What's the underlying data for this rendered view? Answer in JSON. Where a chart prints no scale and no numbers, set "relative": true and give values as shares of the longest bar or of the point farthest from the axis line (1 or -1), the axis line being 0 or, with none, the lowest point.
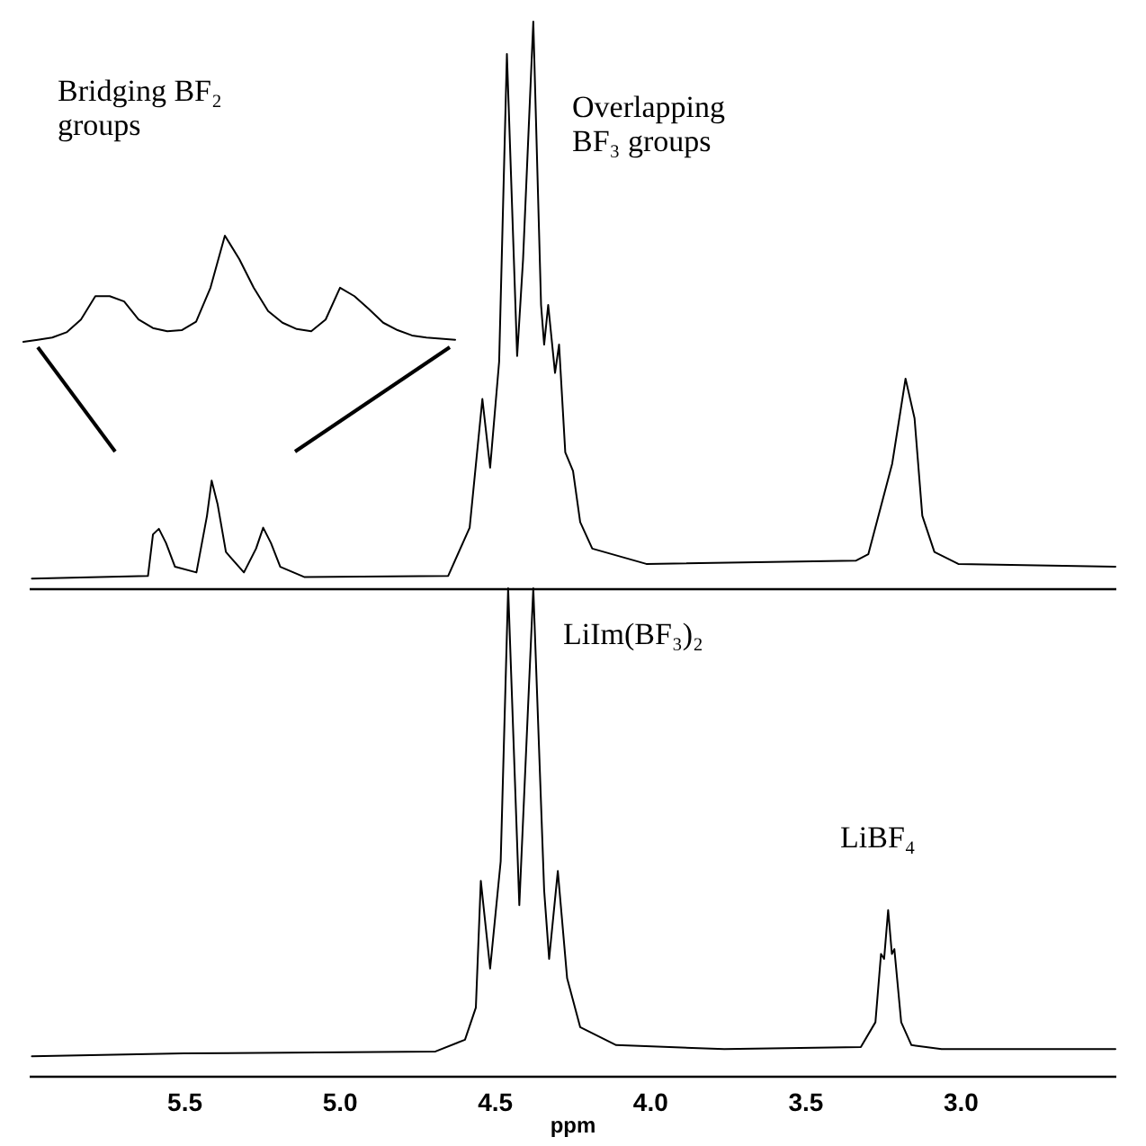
{
  "chart_data": [
    {
      "type": "line",
      "relative": true,
      "xlim": [
        6.0,
        2.5
      ],
      "tick_labels": false,
      "x": [
        5.99,
        5.616,
        5.6,
        5.581,
        5.558,
        5.529,
        5.46,
        5.426,
        5.411,
        5.392,
        5.365,
        5.307,
        5.268,
        5.245,
        5.22,
        5.19,
        5.113,
        4.649,
        4.58,
        4.539,
        4.514,
        4.485,
        4.46,
        4.427,
        4.408,
        4.375,
        4.35,
        4.34,
        4.327,
        4.305,
        4.292,
        4.272,
        4.247,
        4.224,
        4.185,
        4.011,
        3.335,
        3.296,
        3.219,
        3.196,
        3.176,
        3.147,
        3.122,
        3.083,
        3.006,
        2.5
      ],
      "series": [
        {
          "color": "#000000",
          "values": [
            0.017,
            0.022,
            0.095,
            0.105,
            0.08,
            0.038,
            0.028,
            0.128,
            0.19,
            0.149,
            0.064,
            0.028,
            0.07,
            0.107,
            0.08,
            0.038,
            0.02,
            0.022,
            0.107,
            0.334,
            0.213,
            0.4,
            0.943,
            0.41,
            0.58,
            1.0,
            0.5,
            0.43,
            0.5,
            0.38,
            0.43,
            0.24,
            0.207,
            0.117,
            0.07,
            0.043,
            0.049,
            0.06,
            0.22,
            0.3,
            0.37,
            0.3,
            0.128,
            0.064,
            0.043,
            0.038
          ]
        }
      ],
      "annotations": [
        "Bridging BF₂\ngroups",
        "Overlapping\nBF₃ groups"
      ]
    },
    {
      "type": "line",
      "relative": true,
      "tick_labels": false,
      "categories": [
        null,
        null,
        null,
        null,
        null,
        null,
        null,
        null,
        null,
        null,
        null,
        null,
        null,
        null,
        null,
        null,
        null,
        null,
        null,
        null,
        null,
        null,
        null,
        null,
        null,
        null,
        null,
        null,
        null,
        null,
        null
      ],
      "series": [
        {
          "color": "#000000",
          "values": [
            0,
            0.02,
            0.04,
            0.09,
            0.21,
            0.43,
            0.43,
            0.38,
            0.21,
            0.13,
            0.1,
            0.11,
            0.19,
            0.51,
            1.0,
            0.78,
            0.51,
            0.29,
            0.18,
            0.12,
            0.1,
            0.21,
            0.51,
            0.43,
            0.31,
            0.18,
            0.11,
            0.06,
            0.04,
            0.03,
            0.02
          ]
        }
      ]
    },
    {
      "type": "line",
      "relative": true,
      "xlim": [
        6.0,
        2.5
      ],
      "xlabel": "ppm",
      "xticks": [
        5.5,
        {
          "value": 5,
          "label": "5.0"
        },
        4.5,
        {
          "value": 4,
          "label": "4.0"
        },
        3.5,
        {
          "value": 3,
          "label": "3.0"
        }
      ],
      "x": [
        5.99,
        5.5,
        4.69,
        4.595,
        4.56,
        4.544,
        4.514,
        4.48,
        4.456,
        4.42,
        4.375,
        4.34,
        4.324,
        4.296,
        4.266,
        4.224,
        4.108,
        3.76,
        3.32,
        3.273,
        3.255,
        3.245,
        3.232,
        3.22,
        3.212,
        3.19,
        3.157,
        3.06,
        2.5
      ],
      "series": [
        {
          "color": "#000000",
          "values": [
            0.04,
            0.046,
            0.05,
            0.074,
            0.14,
            0.4,
            0.22,
            0.44,
            1.0,
            0.35,
            1.0,
            0.38,
            0.24,
            0.42,
            0.2,
            0.1,
            0.063,
            0.055,
            0.059,
            0.11,
            0.25,
            0.24,
            0.34,
            0.25,
            0.26,
            0.11,
            0.063,
            0.055,
            0.055
          ]
        }
      ],
      "annotations": [
        "LiIm(BF₃)₂",
        "LiBF₄"
      ]
    }
  ]
}
